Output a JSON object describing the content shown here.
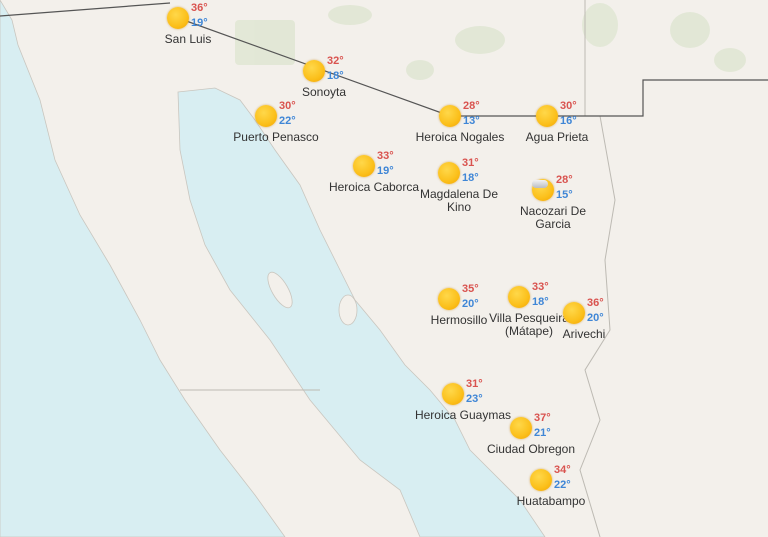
{
  "map": {
    "colors": {
      "land": "#f3f0eb",
      "water": "#d8eef2",
      "border": "#555555",
      "high": "#d9534f",
      "low": "#3f86d6"
    },
    "cities": [
      {
        "name": "San Luis",
        "high": "36°",
        "low": "19°",
        "icon": "sun-icon"
      },
      {
        "name": "Sonoyta",
        "high": "32°",
        "low": "18°",
        "icon": "sun-icon"
      },
      {
        "name": "Puerto Penasco",
        "high": "30°",
        "low": "22°",
        "icon": "sun-icon"
      },
      {
        "name": "Heroica Nogales",
        "high": "28°",
        "low": "13°",
        "icon": "sun-icon"
      },
      {
        "name": "Agua Prieta",
        "high": "30°",
        "low": "16°",
        "icon": "sun-icon"
      },
      {
        "name": "Heroica Caborca",
        "high": "33°",
        "low": "19°",
        "icon": "sun-icon"
      },
      {
        "name": "Magdalena De Kino",
        "high": "31°",
        "low": "18°",
        "icon": "sun-icon"
      },
      {
        "name": "Nacozari De Garcia",
        "high": "28°",
        "low": "15°",
        "icon": "partly-cloudy-icon"
      },
      {
        "name": "Hermosillo",
        "high": "35°",
        "low": "20°",
        "icon": "sun-icon"
      },
      {
        "name": "Villa Pesqueira (Mátape)",
        "high": "33°",
        "low": "18°",
        "icon": "sun-icon"
      },
      {
        "name": "Arivechi",
        "high": "36°",
        "low": "20°",
        "icon": "sun-icon"
      },
      {
        "name": "Heroica Guaymas",
        "high": "31°",
        "low": "23°",
        "icon": "sun-icon"
      },
      {
        "name": "Ciudad Obregon",
        "high": "37°",
        "low": "21°",
        "icon": "sun-icon"
      },
      {
        "name": "Huatabampo",
        "high": "34°",
        "low": "22°",
        "icon": "sun-icon"
      }
    ]
  }
}
